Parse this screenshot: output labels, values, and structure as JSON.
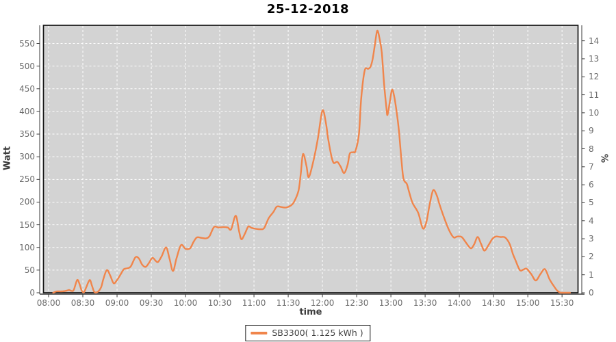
{
  "header": {
    "title": "25-12-2018"
  },
  "chart_data": {
    "type": "line",
    "title": "25-12-2018",
    "xlabel": "time",
    "ylabel_left": "Watt",
    "ylabel_right": "%",
    "grid": "white dashed on gray plot background",
    "legend_position": "bottom-center",
    "plot_bg": "#d3d3d3",
    "outer_bg": "#ffffff",
    "x_tick_labels": [
      "08:00",
      "08:30",
      "09:00",
      "09:30",
      "10:00",
      "10:30",
      "11:00",
      "11:30",
      "12:00",
      "12:30",
      "13:00",
      "13:30",
      "14:00",
      "14:30",
      "15:00",
      "15:30"
    ],
    "y_ticks_left": [
      0,
      50,
      100,
      150,
      200,
      250,
      300,
      350,
      400,
      450,
      500,
      550
    ],
    "y_ticks_right": [
      0,
      1,
      2,
      3,
      4,
      5,
      6,
      7,
      8,
      9,
      10,
      11,
      12,
      13,
      14
    ],
    "x_domain_minutes": [
      475.5,
      944
    ],
    "ylim_left": [
      0,
      590
    ],
    "ylim_right": [
      0,
      14.86
    ],
    "legend": {
      "entries": [
        {
          "label": "SB3300( 1.125 kWh )",
          "color": "#f0854b"
        }
      ]
    },
    "series": [
      {
        "name": "SB3300( 1.125 kWh )",
        "color": "#f0854b",
        "unit": "Watt",
        "points": [
          [
            "08:04",
            0
          ],
          [
            "08:07",
            3
          ],
          [
            "08:11",
            3
          ],
          [
            "08:15",
            4
          ],
          [
            "08:18",
            6
          ],
          [
            "08:20",
            4
          ],
          [
            "08:22",
            6
          ],
          [
            "08:25",
            28
          ],
          [
            "08:27",
            20
          ],
          [
            "08:29",
            5
          ],
          [
            "08:31",
            1
          ],
          [
            "08:33",
            12
          ],
          [
            "08:36",
            28
          ],
          [
            "08:38",
            16
          ],
          [
            "08:40",
            2
          ],
          [
            "08:43",
            2
          ],
          [
            "08:46",
            12
          ],
          [
            "08:48",
            30
          ],
          [
            "08:51",
            50
          ],
          [
            "08:54",
            38
          ],
          [
            "08:57",
            21
          ],
          [
            "09:00",
            28
          ],
          [
            "09:03",
            40
          ],
          [
            "09:06",
            52
          ],
          [
            "09:09",
            54
          ],
          [
            "09:12",
            58
          ],
          [
            "09:16",
            78
          ],
          [
            "09:19",
            76
          ],
          [
            "09:22",
            62
          ],
          [
            "09:25",
            57
          ],
          [
            "09:28",
            66
          ],
          [
            "09:31",
            77
          ],
          [
            "09:34",
            70
          ],
          [
            "09:36",
            68
          ],
          [
            "09:39",
            80
          ],
          [
            "09:43",
            100
          ],
          [
            "09:46",
            75
          ],
          [
            "09:49",
            48
          ],
          [
            "09:52",
            75
          ],
          [
            "09:56",
            105
          ],
          [
            "10:00",
            97
          ],
          [
            "10:04",
            98
          ],
          [
            "10:07",
            112
          ],
          [
            "10:10",
            122
          ],
          [
            "10:14",
            121
          ],
          [
            "10:18",
            120
          ],
          [
            "10:21",
            125
          ],
          [
            "10:25",
            145
          ],
          [
            "10:29",
            144
          ],
          [
            "10:33",
            145
          ],
          [
            "10:37",
            144
          ],
          [
            "10:40",
            140
          ],
          [
            "10:44",
            170
          ],
          [
            "10:47",
            135
          ],
          [
            "10:49",
            118
          ],
          [
            "10:52",
            130
          ],
          [
            "10:55",
            146
          ],
          [
            "10:58",
            143
          ],
          [
            "11:02",
            141
          ],
          [
            "11:06",
            140
          ],
          [
            "11:09",
            143
          ],
          [
            "11:13",
            165
          ],
          [
            "11:17",
            178
          ],
          [
            "11:20",
            190
          ],
          [
            "11:24",
            189
          ],
          [
            "11:28",
            188
          ],
          [
            "11:32",
            192
          ],
          [
            "11:35",
            200
          ],
          [
            "11:39",
            225
          ],
          [
            "11:41",
            262
          ],
          [
            "11:43",
            306
          ],
          [
            "11:46",
            280
          ],
          [
            "11:48",
            255
          ],
          [
            "11:52",
            290
          ],
          [
            "11:56",
            340
          ],
          [
            "12:00",
            402
          ],
          [
            "12:03",
            375
          ],
          [
            "12:05",
            340
          ],
          [
            "12:08",
            300
          ],
          [
            "12:10",
            286
          ],
          [
            "12:13",
            289
          ],
          [
            "12:16",
            278
          ],
          [
            "12:19",
            264
          ],
          [
            "12:22",
            282
          ],
          [
            "12:24",
            307
          ],
          [
            "12:27",
            310
          ],
          [
            "12:29",
            313
          ],
          [
            "12:32",
            350
          ],
          [
            "12:34",
            430
          ],
          [
            "12:37",
            490
          ],
          [
            "12:40",
            494
          ],
          [
            "12:42",
            498
          ],
          [
            "12:44",
            515
          ],
          [
            "12:46",
            548
          ],
          [
            "12:48",
            578
          ],
          [
            "12:50",
            562
          ],
          [
            "12:52",
            530
          ],
          [
            "12:54",
            462
          ],
          [
            "12:56",
            410
          ],
          [
            "12:57",
            392
          ],
          [
            "12:59",
            420
          ],
          [
            "13:01",
            448
          ],
          [
            "13:03",
            432
          ],
          [
            "13:05",
            400
          ],
          [
            "13:07",
            358
          ],
          [
            "13:09",
            300
          ],
          [
            "13:11",
            252
          ],
          [
            "13:14",
            240
          ],
          [
            "13:16",
            222
          ],
          [
            "13:19",
            198
          ],
          [
            "13:24",
            176
          ],
          [
            "13:28",
            142
          ],
          [
            "13:31",
            155
          ],
          [
            "13:34",
            195
          ],
          [
            "13:37",
            226
          ],
          [
            "13:40",
            216
          ],
          [
            "13:43",
            192
          ],
          [
            "13:47",
            163
          ],
          [
            "13:51",
            138
          ],
          [
            "13:55",
            122
          ],
          [
            "13:58",
            124
          ],
          [
            "14:02",
            123
          ],
          [
            "14:06",
            110
          ],
          [
            "14:10",
            98
          ],
          [
            "14:13",
            107
          ],
          [
            "14:16",
            123
          ],
          [
            "14:19",
            108
          ],
          [
            "14:22",
            93
          ],
          [
            "14:26",
            107
          ],
          [
            "14:29",
            119
          ],
          [
            "14:32",
            124
          ],
          [
            "14:36",
            123
          ],
          [
            "14:40",
            122
          ],
          [
            "14:44",
            108
          ],
          [
            "14:47",
            85
          ],
          [
            "14:49",
            73
          ],
          [
            "14:53",
            50
          ],
          [
            "14:56",
            51
          ],
          [
            "14:59",
            53
          ],
          [
            "15:03",
            41
          ],
          [
            "15:07",
            27
          ],
          [
            "15:11",
            41
          ],
          [
            "15:15",
            52
          ],
          [
            "15:19",
            30
          ],
          [
            "15:23",
            14
          ],
          [
            "15:26",
            4
          ],
          [
            "15:29",
            0
          ],
          [
            "15:33",
            0
          ],
          [
            "15:37",
            0
          ]
        ]
      }
    ]
  }
}
